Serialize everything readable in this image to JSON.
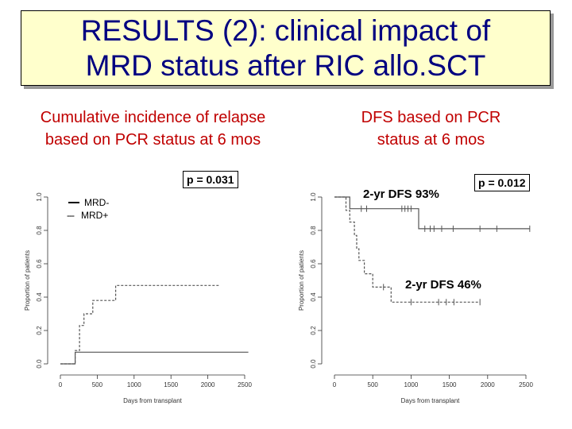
{
  "title": {
    "line1": "RESULTS (2): clinical impact of",
    "line2": "MRD status after RIC allo.SCT"
  },
  "colors": {
    "title_text": "#000080",
    "title_bg": "#ffffcc",
    "subtitle_text": "#c00000",
    "curve": "#555555"
  },
  "chart_data": [
    {
      "type": "line",
      "subtitle_line1": "Cumulative incidence of relapse",
      "subtitle_line2": "based on PCR status at 6 mos",
      "xlabel": "Days from transplant",
      "ylabel": "Proportion of patients",
      "xlim": [
        -100,
        2650
      ],
      "ylim": [
        0,
        1.0
      ],
      "xticks": [
        0,
        500,
        1000,
        1500,
        2000,
        2500
      ],
      "yticks": [
        0.0,
        0.2,
        0.4,
        0.6,
        0.8,
        1.0
      ],
      "p_value": "p = 0.031",
      "legend": {
        "solid": "MRD-",
        "dashed_symbol": "---",
        "dashed": "MRD+"
      },
      "series": [
        {
          "name": "MRD-",
          "style": "solid",
          "points": [
            [
              0,
              0.0
            ],
            [
              200,
              0.0
            ],
            [
              200,
              0.07
            ],
            [
              2550,
              0.07
            ]
          ],
          "censors": []
        },
        {
          "name": "MRD+",
          "style": "dashed",
          "points": [
            [
              0,
              0.0
            ],
            [
              200,
              0.0
            ],
            [
              200,
              0.08
            ],
            [
              260,
              0.08
            ],
            [
              260,
              0.23
            ],
            [
              320,
              0.23
            ],
            [
              320,
              0.3
            ],
            [
              440,
              0.3
            ],
            [
              440,
              0.38
            ],
            [
              750,
              0.38
            ],
            [
              750,
              0.47
            ],
            [
              2150,
              0.47
            ]
          ],
          "censors": []
        }
      ]
    },
    {
      "type": "line",
      "subtitle_line1": "DFS based on PCR",
      "subtitle_line2": "status at 6 mos",
      "xlabel": "Days from transplant",
      "ylabel": "Proportion of patients",
      "xlim": [
        -100,
        2650
      ],
      "ylim": [
        0,
        1.0
      ],
      "xticks": [
        0,
        500,
        1000,
        1500,
        2000,
        2500
      ],
      "yticks": [
        0.0,
        0.2,
        0.4,
        0.6,
        0.8,
        1.0
      ],
      "p_value": "p = 0.012",
      "annotation_top": "2-yr DFS 93%",
      "annotation_bottom": "2-yr DFS 46%",
      "series": [
        {
          "name": "MRD-",
          "style": "solid",
          "points": [
            [
              0,
              1.0
            ],
            [
              200,
              1.0
            ],
            [
              200,
              0.93
            ],
            [
              1100,
              0.93
            ],
            [
              1100,
              0.81
            ],
            [
              2550,
              0.81
            ]
          ],
          "censors": [
            [
              350,
              0.93
            ],
            [
              420,
              0.93
            ],
            [
              880,
              0.93
            ],
            [
              920,
              0.93
            ],
            [
              960,
              0.93
            ],
            [
              1000,
              0.93
            ],
            [
              1180,
              0.81
            ],
            [
              1250,
              0.81
            ],
            [
              1300,
              0.81
            ],
            [
              1400,
              0.81
            ],
            [
              1550,
              0.81
            ],
            [
              1900,
              0.81
            ],
            [
              2120,
              0.81
            ],
            [
              2550,
              0.81
            ]
          ]
        },
        {
          "name": "MRD+",
          "style": "dashed",
          "points": [
            [
              0,
              1.0
            ],
            [
              150,
              1.0
            ],
            [
              150,
              0.92
            ],
            [
              200,
              0.92
            ],
            [
              200,
              0.85
            ],
            [
              260,
              0.85
            ],
            [
              260,
              0.77
            ],
            [
              290,
              0.77
            ],
            [
              290,
              0.69
            ],
            [
              320,
              0.69
            ],
            [
              320,
              0.62
            ],
            [
              390,
              0.62
            ],
            [
              390,
              0.54
            ],
            [
              500,
              0.54
            ],
            [
              500,
              0.46
            ],
            [
              740,
              0.46
            ],
            [
              740,
              0.37
            ],
            [
              1900,
              0.37
            ]
          ],
          "censors": [
            [
              640,
              0.46
            ],
            [
              1000,
              0.37
            ],
            [
              1360,
              0.37
            ],
            [
              1460,
              0.37
            ],
            [
              1560,
              0.37
            ],
            [
              1900,
              0.37
            ]
          ]
        }
      ]
    }
  ]
}
